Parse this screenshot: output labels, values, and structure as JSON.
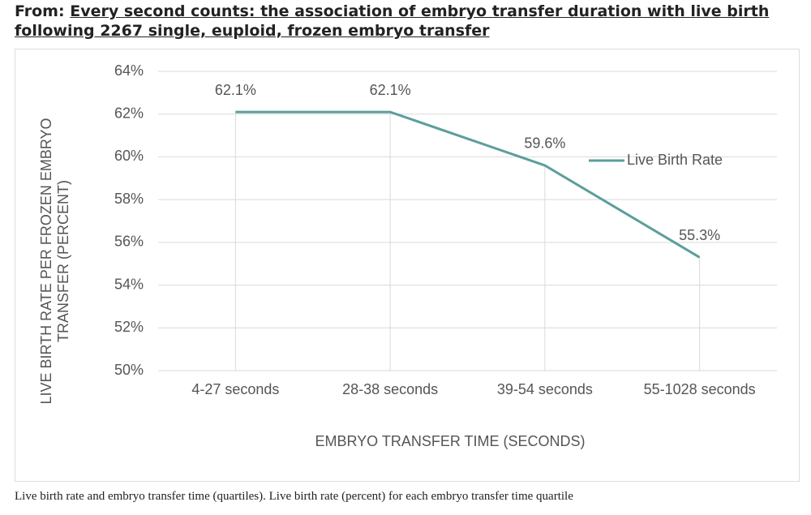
{
  "header": {
    "prefix": "From:",
    "title": "Every second counts: the association of embryo transfer duration with live birth following 2267 single, euploid, frozen embryo transfer"
  },
  "chart_data": {
    "type": "line",
    "x_label": "EMBRYO TRANSFER TIME (SECONDS)",
    "y_label": "LIVE BIRTH RATE PER FROZEN EMBRYO TRANSFER (PERCENT)",
    "categories": [
      "4-27 seconds",
      "28-38 seconds",
      "39-54 seconds",
      "55-1028 seconds"
    ],
    "series": [
      {
        "name": "Live Birth Rate",
        "color": "#5b9e9b",
        "values": [
          62.1,
          62.1,
          59.6,
          55.3
        ],
        "value_labels": [
          "62.1%",
          "62.1%",
          "59.6%",
          "55.3%"
        ]
      }
    ],
    "ylim": [
      50,
      64
    ],
    "yticks": [
      {
        "value": 50,
        "label": "50%"
      },
      {
        "value": 52,
        "label": "52%"
      },
      {
        "value": 54,
        "label": "54%"
      },
      {
        "value": 56,
        "label": "56%"
      },
      {
        "value": 58,
        "label": "58%"
      },
      {
        "value": 60,
        "label": "60%"
      },
      {
        "value": 62,
        "label": "62%"
      },
      {
        "value": 64,
        "label": "64%"
      }
    ],
    "grid": true,
    "drop_lines": true,
    "legend": "right"
  },
  "caption": "Live birth rate and embryo transfer time (quartiles). Live birth rate (percent) for each embryo transfer time quartile"
}
